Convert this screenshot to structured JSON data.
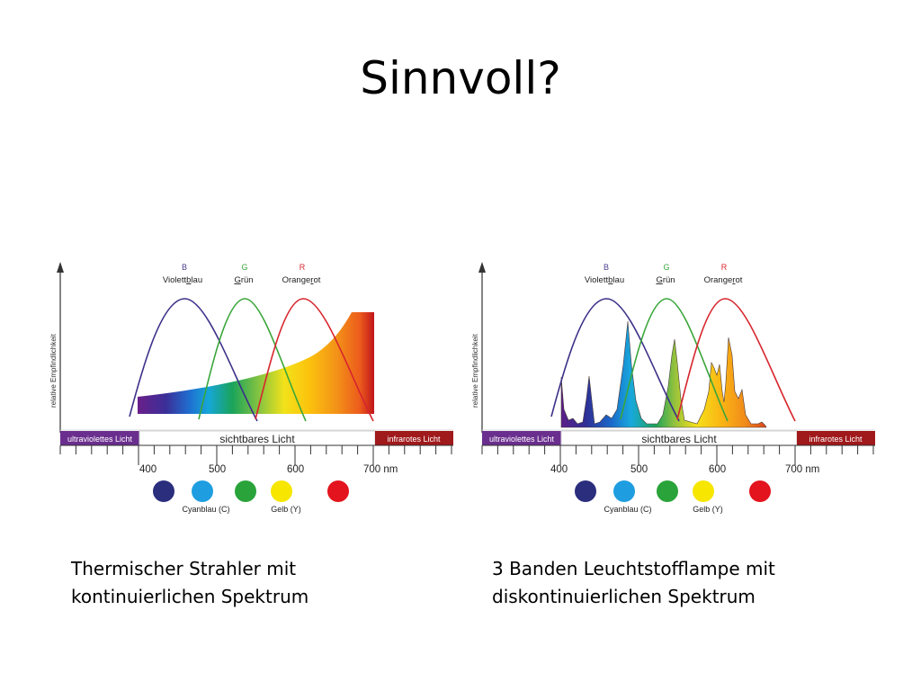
{
  "slide": {
    "title": "Sinnvoll?"
  },
  "figure": {
    "y_axis_label": "relative Empfindlichkeit",
    "sensitivity_curves": [
      {
        "letter": "B",
        "name_pre": "Violett",
        "name_mark": "b",
        "name_post": "lau",
        "color": "#4b3c8e"
      },
      {
        "letter": "G",
        "name_pre": "",
        "name_mark": "G",
        "name_post": "rün",
        "color": "#3aa63a"
      },
      {
        "letter": "R",
        "name_pre": "Orange",
        "name_mark": "r",
        "name_post": "ot",
        "color": "#d7262e"
      }
    ],
    "bands": {
      "uv": "ultraviolettes Licht",
      "visible": "sichtbares Licht",
      "ir": "infrarotes Licht"
    },
    "ticks": [
      "400",
      "500",
      "600",
      "700 nm"
    ],
    "color_dots": [
      {
        "color": "#2b2e7d",
        "label": ""
      },
      {
        "color": "#1e9ee0",
        "label": "Cyanblau (C)"
      },
      {
        "color": "#2aa33a",
        "label": ""
      },
      {
        "color": "#f6e600",
        "label": "Gelb (Y)"
      },
      {
        "color": "#e3141e",
        "label": ""
      }
    ],
    "colors": {
      "uv_band": "#6a2f8e",
      "ir_band": "#a0191b"
    }
  },
  "panels": {
    "left": {
      "caption_line1": "Thermischer Strahler mit",
      "caption_line2": "kontinuierlichen Spektrum"
    },
    "right": {
      "caption_line1": "3 Banden Leuchtstofflampe mit",
      "caption_line2": "diskontinuierlichen Spektrum"
    }
  }
}
